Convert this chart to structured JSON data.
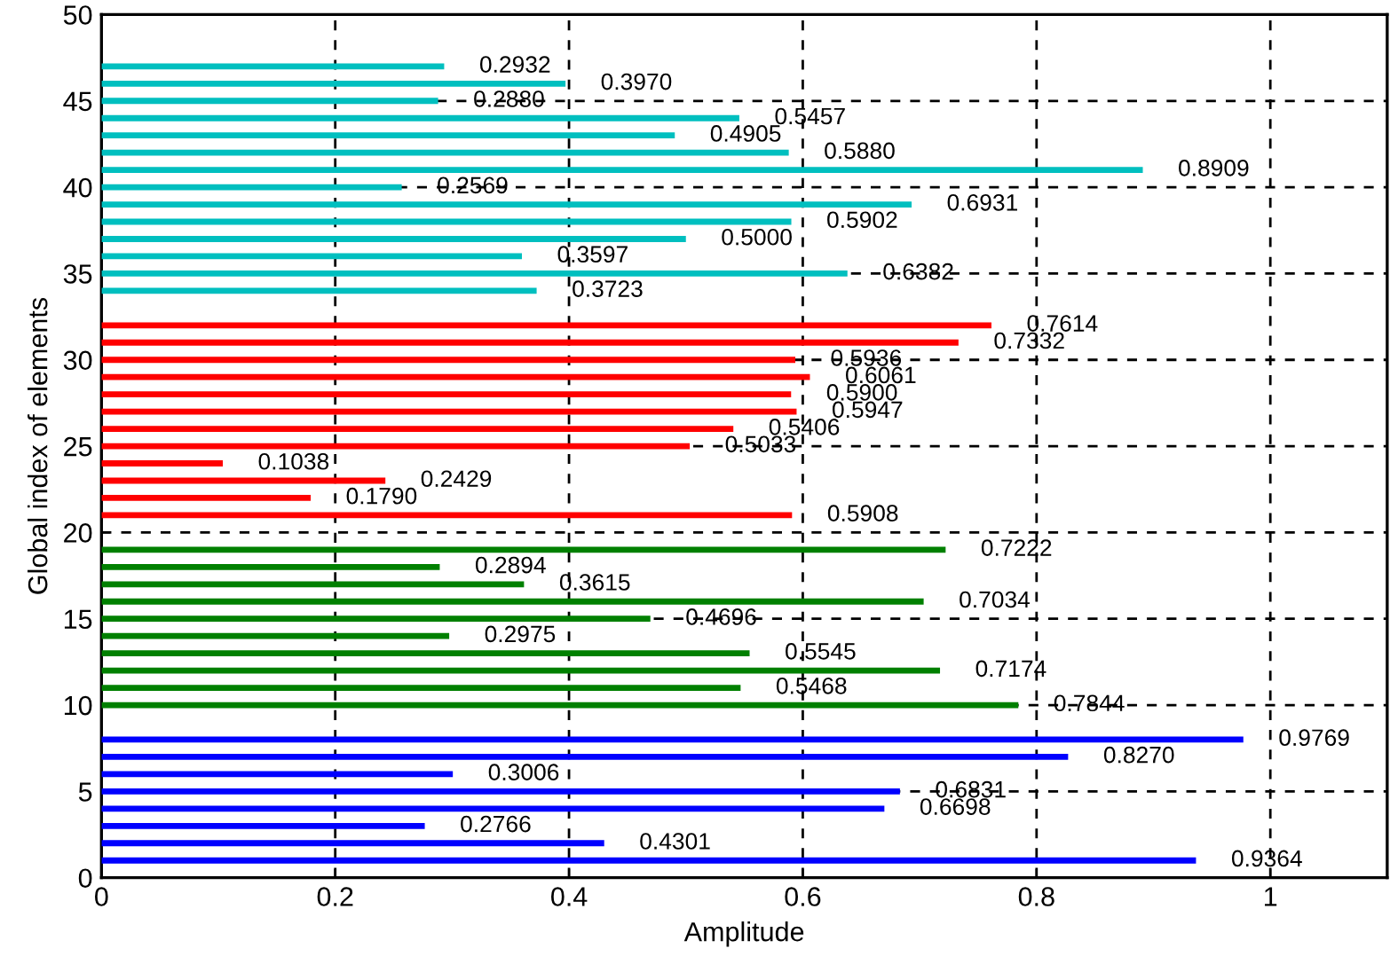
{
  "chart_data": {
    "type": "bar",
    "orientation": "horizontal",
    "xlabel": "Amplitude",
    "ylabel": "Global index of elements",
    "series": [
      {
        "color": "#0000ff",
        "x": [
          1,
          2,
          3,
          4,
          5,
          6,
          7,
          8
        ],
        "values": [
          0.9364,
          0.4301,
          0.2766,
          0.6698,
          0.6831,
          0.3006,
          0.827,
          0.9769
        ],
        "value_labels": [
          "0.9364",
          "0.4301",
          "0.2766",
          "0.6698",
          "0.6831",
          "0.3006",
          "0.8270",
          "0.9769"
        ]
      },
      {
        "color": "#008000",
        "x": [
          10,
          11,
          12,
          13,
          14,
          15,
          16,
          17,
          18,
          19
        ],
        "values": [
          0.7844,
          0.5468,
          0.7174,
          0.5545,
          0.2975,
          0.4696,
          0.7034,
          0.3615,
          0.2894,
          0.7222
        ],
        "value_labels": [
          "0.7844",
          "0.5468",
          "0.7174",
          "0.5545",
          "0.2975",
          "0.4696",
          "0.7034",
          "0.3615",
          "0.2894",
          "0.7222"
        ]
      },
      {
        "color": "#ff0000",
        "x": [
          21,
          22,
          23,
          24,
          25,
          26,
          27,
          28,
          29,
          30,
          31,
          32
        ],
        "values": [
          0.5908,
          0.179,
          0.2429,
          0.1038,
          0.5033,
          0.5406,
          0.5947,
          0.59,
          0.6061,
          0.5936,
          0.7332,
          0.7614
        ],
        "value_labels": [
          "0.5908",
          "0.1790",
          "0.2429",
          "0.1038",
          "0.5033",
          "0.5406",
          "0.5947",
          "0.5900",
          "0.6061",
          "0.5936",
          "0.7332",
          "0.7614"
        ]
      },
      {
        "color": "#00bfbf",
        "x": [
          34,
          35,
          36,
          37,
          38,
          39,
          40,
          41,
          42,
          43,
          44,
          45,
          46,
          47
        ],
        "values": [
          0.3723,
          0.6382,
          0.3597,
          0.5,
          0.5902,
          0.6931,
          0.2569,
          0.8909,
          0.588,
          0.4905,
          0.5457,
          0.288,
          0.397,
          0.2932
        ],
        "value_labels": [
          "0.3723",
          "0.6382",
          "0.3597",
          "0.5000",
          "0.5902",
          "0.6931",
          "0.2569",
          "0.8909",
          "0.5880",
          "0.4905",
          "0.5457",
          "0.2880",
          "0.3970",
          "0.2932"
        ]
      }
    ],
    "xlim": [
      0,
      1.1
    ],
    "xticks": [
      0,
      0.2,
      0.4,
      0.6,
      0.8,
      1
    ],
    "ylim": [
      0,
      50
    ],
    "yticks": [
      0,
      5,
      10,
      15,
      20,
      25,
      30,
      35,
      40,
      45,
      50
    ],
    "grid": true
  }
}
